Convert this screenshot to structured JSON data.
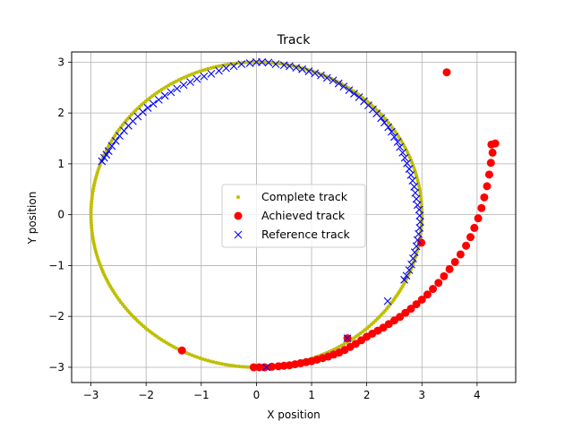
{
  "chart_data": {
    "type": "scatter",
    "title": "Track",
    "xlabel": "X position",
    "ylabel": "Y position",
    "xlim": [
      -3.35,
      4.7
    ],
    "ylim": [
      -3.3,
      3.2
    ],
    "xticks": [
      -3,
      -2,
      -1,
      0,
      1,
      2,
      3,
      4
    ],
    "yticks": [
      -3,
      -2,
      -1,
      0,
      1,
      2,
      3
    ],
    "grid": true,
    "legend_position": "center",
    "series": [
      {
        "name": "Complete track",
        "marker": "small-dot",
        "color": "#bfbf00",
        "shape": "circle",
        "params": {
          "cx": 0,
          "cy": 0,
          "r": 3,
          "count": 360
        }
      },
      {
        "name": "Achieved track",
        "marker": "circle",
        "color": "#ff0000",
        "points": [
          [
            -0.05,
            -3.0
          ],
          [
            0.05,
            -3.0
          ],
          [
            0.15,
            -3.0
          ],
          [
            0.28,
            -2.99
          ],
          [
            0.4,
            -2.98
          ],
          [
            0.5,
            -2.97
          ],
          [
            0.6,
            -2.96
          ],
          [
            0.7,
            -2.94
          ],
          [
            0.8,
            -2.92
          ],
          [
            0.9,
            -2.9
          ],
          [
            1.0,
            -2.88
          ],
          [
            1.1,
            -2.85
          ],
          [
            1.2,
            -2.82
          ],
          [
            1.3,
            -2.79
          ],
          [
            1.4,
            -2.75
          ],
          [
            1.5,
            -2.71
          ],
          [
            1.6,
            -2.66
          ],
          [
            1.7,
            -2.6
          ],
          [
            1.8,
            -2.54
          ],
          [
            1.9,
            -2.47
          ],
          [
            2.0,
            -2.4
          ],
          [
            2.1,
            -2.34
          ],
          [
            2.2,
            -2.28
          ],
          [
            2.3,
            -2.22
          ],
          [
            2.4,
            -2.15
          ],
          [
            2.5,
            -2.08
          ],
          [
            2.6,
            -2.01
          ],
          [
            2.7,
            -1.93
          ],
          [
            2.8,
            -1.85
          ],
          [
            2.9,
            -1.76
          ],
          [
            3.0,
            -1.67
          ],
          [
            3.1,
            -1.57
          ],
          [
            3.2,
            -1.46
          ],
          [
            3.3,
            -1.34
          ],
          [
            3.4,
            -1.21
          ],
          [
            3.5,
            -1.07
          ],
          [
            3.6,
            -0.93
          ],
          [
            3.7,
            -0.78
          ],
          [
            3.8,
            -0.61
          ],
          [
            3.88,
            -0.44
          ],
          [
            3.95,
            -0.26
          ],
          [
            4.02,
            -0.07
          ],
          [
            4.08,
            0.13
          ],
          [
            4.13,
            0.34
          ],
          [
            4.18,
            0.56
          ],
          [
            4.22,
            0.79
          ],
          [
            4.25,
            1.02
          ],
          [
            4.28,
            1.22
          ],
          [
            4.26,
            1.38
          ],
          [
            4.33,
            1.4
          ],
          [
            2.99,
            -0.55
          ],
          [
            3.45,
            2.8
          ],
          [
            -1.35,
            -2.67
          ],
          [
            1.65,
            -2.43
          ]
        ]
      },
      {
        "name": "Reference track",
        "marker": "x",
        "color": "#0000ff",
        "points": [
          [
            -2.8,
            1.05
          ],
          [
            -2.76,
            1.12
          ],
          [
            -2.72,
            1.18
          ],
          [
            -2.68,
            1.25
          ],
          [
            -2.62,
            1.35
          ],
          [
            -2.55,
            1.45
          ],
          [
            -2.48,
            1.55
          ],
          [
            -2.4,
            1.65
          ],
          [
            -2.32,
            1.75
          ],
          [
            -2.24,
            1.84
          ],
          [
            -2.15,
            1.93
          ],
          [
            -2.06,
            2.02
          ],
          [
            -1.97,
            2.1
          ],
          [
            -1.87,
            2.18
          ],
          [
            -1.77,
            2.26
          ],
          [
            -1.66,
            2.34
          ],
          [
            -1.55,
            2.41
          ],
          [
            -1.44,
            2.48
          ],
          [
            -1.32,
            2.55
          ],
          [
            -1.2,
            2.61
          ],
          [
            -1.08,
            2.67
          ],
          [
            -0.95,
            2.72
          ],
          [
            -0.82,
            2.77
          ],
          [
            -0.68,
            2.83
          ],
          [
            -0.55,
            2.88
          ],
          [
            -0.41,
            2.92
          ],
          [
            -0.27,
            2.96
          ],
          [
            -0.12,
            2.98
          ],
          [
            0.0,
            3.0
          ],
          [
            0.1,
            3.0
          ],
          [
            0.22,
            2.99
          ],
          [
            0.35,
            2.96
          ],
          [
            0.5,
            2.94
          ],
          [
            0.6,
            2.92
          ],
          [
            0.72,
            2.89
          ],
          [
            0.83,
            2.86
          ],
          [
            0.95,
            2.82
          ],
          [
            1.06,
            2.78
          ],
          [
            1.17,
            2.74
          ],
          [
            1.28,
            2.69
          ],
          [
            1.39,
            2.64
          ],
          [
            1.49,
            2.58
          ],
          [
            1.58,
            2.52
          ],
          [
            1.68,
            2.45
          ],
          [
            1.77,
            2.38
          ],
          [
            1.86,
            2.31
          ],
          [
            1.95,
            2.23
          ],
          [
            2.03,
            2.15
          ],
          [
            2.11,
            2.07
          ],
          [
            2.18,
            1.99
          ],
          [
            2.26,
            1.9
          ],
          [
            2.32,
            1.81
          ],
          [
            2.39,
            1.72
          ],
          [
            2.45,
            1.63
          ],
          [
            2.5,
            1.53
          ],
          [
            2.56,
            1.43
          ],
          [
            2.6,
            1.33
          ],
          [
            2.65,
            1.22
          ],
          [
            2.69,
            1.12
          ],
          [
            2.73,
            1.01
          ],
          [
            2.77,
            0.9
          ],
          [
            2.8,
            0.78
          ],
          [
            2.83,
            0.67
          ],
          [
            2.86,
            0.55
          ],
          [
            2.88,
            0.43
          ],
          [
            2.9,
            0.31
          ],
          [
            2.92,
            0.19
          ],
          [
            2.95,
            0.1
          ],
          [
            2.96,
            -0.02
          ],
          [
            2.97,
            -0.14
          ],
          [
            2.96,
            -0.26
          ],
          [
            2.94,
            -0.38
          ],
          [
            2.92,
            -0.5
          ],
          [
            2.9,
            -0.62
          ],
          [
            2.87,
            -0.74
          ],
          [
            2.84,
            -0.86
          ],
          [
            2.81,
            -0.98
          ],
          [
            2.77,
            -1.09
          ],
          [
            2.72,
            -1.2
          ],
          [
            2.68,
            -1.28
          ],
          [
            2.38,
            -1.7
          ],
          [
            1.65,
            -2.43
          ],
          [
            0.18,
            -3.0
          ]
        ]
      }
    ]
  }
}
